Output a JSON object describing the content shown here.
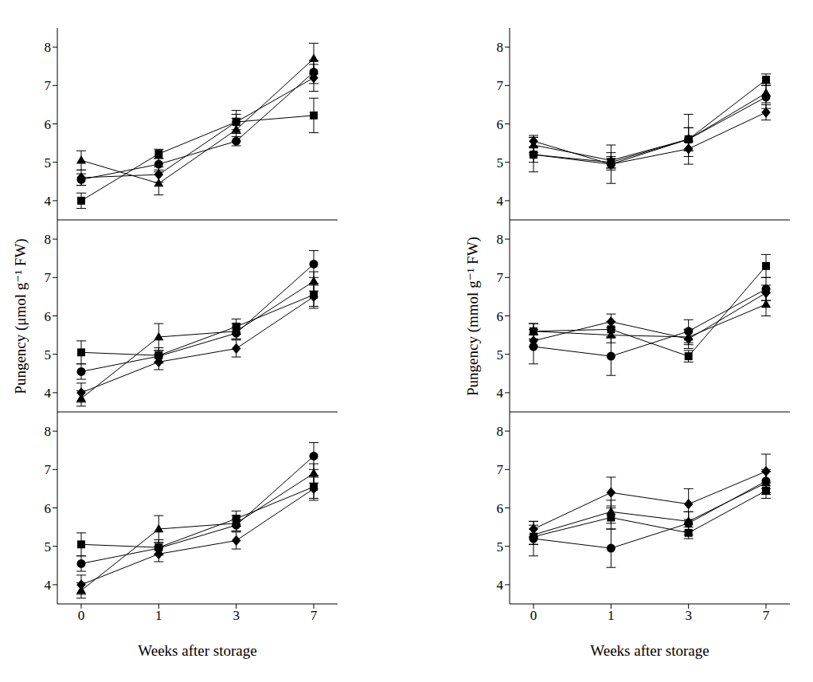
{
  "chart_data": [
    {
      "type": "line",
      "categories": [
        "0",
        "1",
        "3",
        "7"
      ],
      "ylim": [
        3.5,
        8.5
      ],
      "yticks": [
        4,
        5,
        6,
        7,
        8
      ],
      "tick_labels": "y",
      "series": [
        {
          "marker": "circle",
          "color": "#000000",
          "values": [
            4.55,
            4.95,
            5.55,
            7.35
          ],
          "errors": [
            0.15,
            0.15,
            0.12,
            0.3
          ]
        },
        {
          "marker": "triangle",
          "color": "#000000",
          "values": [
            5.05,
            4.45,
            5.85,
            7.7
          ],
          "errors": [
            0.25,
            0.3,
            0.3,
            0.4
          ]
        },
        {
          "marker": "square",
          "color": "#000000",
          "values": [
            4.0,
            5.22,
            6.05,
            6.22
          ],
          "errors": [
            0.2,
            0.12,
            0.2,
            0.45
          ]
        },
        {
          "marker": "diamond",
          "color": "#000000",
          "values": [
            4.6,
            4.68,
            6.05,
            7.2
          ],
          "errors": [
            0.2,
            0.2,
            0.3,
            0.35
          ]
        }
      ]
    },
    {
      "type": "line",
      "categories": [
        "0",
        "1",
        "3",
        "7"
      ],
      "ylim": [
        3.5,
        8.5
      ],
      "yticks": [
        4,
        5,
        6,
        7,
        8
      ],
      "tick_labels": "y",
      "ylabel": "Pungency (μmol g⁻¹ FW)",
      "series": [
        {
          "marker": "circle",
          "color": "#000000",
          "values": [
            4.55,
            4.95,
            5.55,
            7.35
          ],
          "errors": [
            0.2,
            0.15,
            0.15,
            0.35
          ]
        },
        {
          "marker": "triangle",
          "color": "#000000",
          "values": [
            3.85,
            5.45,
            5.6,
            6.9
          ],
          "errors": [
            0.2,
            0.35,
            0.2,
            0.25
          ]
        },
        {
          "marker": "square",
          "color": "#000000",
          "values": [
            5.05,
            4.97,
            5.72,
            6.55
          ],
          "errors": [
            0.3,
            0.2,
            0.2,
            0.3
          ]
        },
        {
          "marker": "diamond",
          "color": "#000000",
          "values": [
            4.0,
            4.8,
            5.15,
            6.5
          ],
          "errors": [
            0.25,
            0.2,
            0.22,
            0.3
          ]
        }
      ]
    },
    {
      "type": "line",
      "categories": [
        "0",
        "1",
        "3",
        "7"
      ],
      "ylim": [
        3.5,
        8.5
      ],
      "yticks": [
        4,
        5,
        6,
        7,
        8
      ],
      "xlabel": "Weeks after storage",
      "series": [
        {
          "marker": "circle",
          "color": "#000000",
          "values": [
            4.55,
            4.95,
            5.55,
            7.35
          ],
          "errors": [
            0.2,
            0.15,
            0.15,
            0.35
          ]
        },
        {
          "marker": "triangle",
          "color": "#000000",
          "values": [
            3.85,
            5.45,
            5.6,
            6.9
          ],
          "errors": [
            0.2,
            0.35,
            0.2,
            0.25
          ]
        },
        {
          "marker": "square",
          "color": "#000000",
          "values": [
            5.05,
            4.97,
            5.72,
            6.55
          ],
          "errors": [
            0.3,
            0.2,
            0.2,
            0.3
          ]
        },
        {
          "marker": "diamond",
          "color": "#000000",
          "values": [
            4.0,
            4.8,
            5.15,
            6.5
          ],
          "errors": [
            0.25,
            0.2,
            0.22,
            0.3
          ]
        }
      ]
    },
    {
      "type": "line",
      "categories": [
        "0",
        "1",
        "3",
        "7"
      ],
      "ylim": [
        3.5,
        8.5
      ],
      "yticks": [
        4,
        5,
        6,
        7,
        8
      ],
      "tick_labels": "y",
      "series": [
        {
          "marker": "circle",
          "color": "#000000",
          "values": [
            5.2,
            4.95,
            5.6,
            6.7
          ],
          "errors": [
            0.45,
            0.5,
            0.3,
            0.3
          ]
        },
        {
          "marker": "triangle",
          "color": "#000000",
          "values": [
            5.45,
            5.05,
            5.6,
            6.8
          ],
          "errors": [
            0.2,
            0.2,
            0.3,
            0.25
          ]
        },
        {
          "marker": "square",
          "color": "#000000",
          "values": [
            5.2,
            5.0,
            5.6,
            7.15
          ],
          "errors": [
            0.2,
            0.15,
            0.65,
            0.15
          ]
        },
        {
          "marker": "diamond",
          "color": "#000000",
          "values": [
            5.55,
            4.95,
            5.35,
            6.3
          ],
          "errors": [
            0.15,
            0.15,
            0.2,
            0.2
          ]
        }
      ]
    },
    {
      "type": "line",
      "categories": [
        "0",
        "1",
        "3",
        "7"
      ],
      "ylim": [
        3.5,
        8.5
      ],
      "yticks": [
        4,
        5,
        6,
        7,
        8
      ],
      "tick_labels": "y",
      "ylabel": "Pungency (mmol g⁻¹ FW)",
      "series": [
        {
          "marker": "circle",
          "color": "#000000",
          "values": [
            5.2,
            4.95,
            5.6,
            6.7
          ],
          "errors": [
            0.45,
            0.5,
            0.3,
            0.3
          ]
        },
        {
          "marker": "triangle",
          "color": "#000000",
          "values": [
            5.6,
            5.5,
            5.45,
            6.3
          ],
          "errors": [
            0.2,
            0.2,
            0.2,
            0.3
          ]
        },
        {
          "marker": "square",
          "color": "#000000",
          "values": [
            5.6,
            5.65,
            4.95,
            7.3
          ],
          "errors": [
            0.2,
            0.2,
            0.15,
            0.3
          ]
        },
        {
          "marker": "diamond",
          "color": "#000000",
          "values": [
            5.35,
            5.85,
            5.4,
            6.6
          ],
          "errors": [
            0.15,
            0.2,
            0.25,
            0.2
          ]
        }
      ]
    },
    {
      "type": "line",
      "categories": [
        "0",
        "1",
        "3",
        "7"
      ],
      "ylim": [
        3.5,
        8.5
      ],
      "yticks": [
        4,
        5,
        6,
        7,
        8
      ],
      "xlabel": "Weeks after storage",
      "series": [
        {
          "marker": "circle",
          "color": "#000000",
          "values": [
            5.2,
            4.95,
            5.6,
            6.7
          ],
          "errors": [
            0.45,
            0.5,
            0.3,
            0.3
          ]
        },
        {
          "marker": "triangle",
          "color": "#000000",
          "values": [
            5.3,
            5.9,
            5.65,
            6.65
          ],
          "errors": [
            0.25,
            0.3,
            0.25,
            0.3
          ]
        },
        {
          "marker": "square",
          "color": "#000000",
          "values": [
            5.25,
            5.75,
            5.35,
            6.45
          ],
          "errors": [
            0.2,
            0.3,
            0.15,
            0.2
          ]
        },
        {
          "marker": "diamond",
          "color": "#000000",
          "values": [
            5.45,
            6.4,
            6.1,
            6.95
          ],
          "errors": [
            0.2,
            0.4,
            0.4,
            0.45
          ]
        }
      ]
    }
  ]
}
